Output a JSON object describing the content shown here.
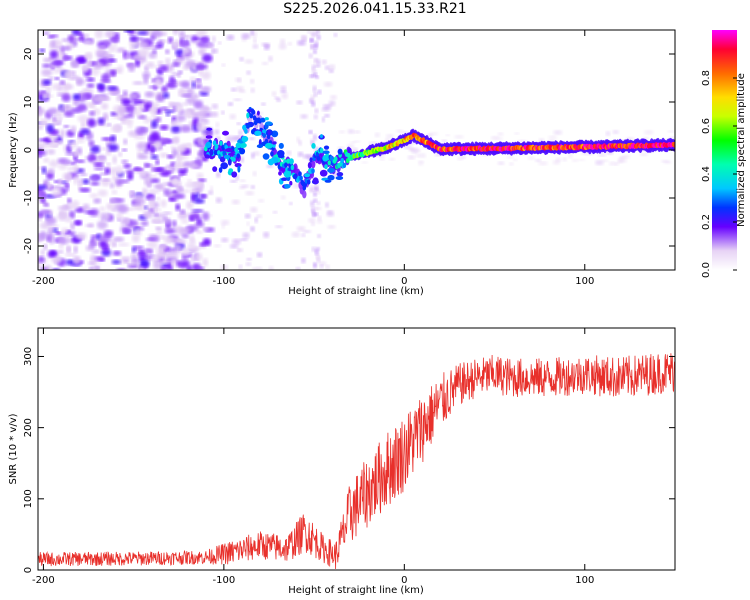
{
  "title": "S225.2026.041.15.33.R21",
  "chart_data": [
    {
      "type": "heatmap",
      "title": "S225.2026.041.15.33.R21",
      "xlabel": "Height of straight line (km)",
      "ylabel": "Frequency (Hz)",
      "xlim": [
        -203,
        150
      ],
      "ylim": [
        -25,
        25
      ],
      "xticks": [
        -200,
        -100,
        0,
        100
      ],
      "xtick_labels": [
        "-200",
        "-100",
        "0",
        "100"
      ],
      "yticks": [
        -20,
        -10,
        0,
        10,
        20
      ],
      "ytick_labels": [
        "-20",
        "-10",
        "0",
        "10",
        "20"
      ],
      "colorbar": {
        "label": "Normalized spectral amplitude",
        "range": [
          0,
          1
        ],
        "ticks": [
          0.0,
          0.2,
          0.4,
          0.6,
          0.8
        ],
        "tick_labels": [
          "0.0",
          "0.2",
          "0.4",
          "0.6",
          "0.8"
        ]
      },
      "features": {
        "noise_region_x": [
          -203,
          -108
        ],
        "signal_track": [
          {
            "x": -110,
            "y": 0.5,
            "amp": 0.35
          },
          {
            "x": -100,
            "y": 0.0,
            "amp": 0.3
          },
          {
            "x": -92,
            "y": -1.0,
            "amp": 0.3
          },
          {
            "x": -85,
            "y": 8.0,
            "amp": 0.15
          },
          {
            "x": -78,
            "y": 4.0,
            "amp": 0.2
          },
          {
            "x": -70,
            "y": -2.0,
            "amp": 0.3
          },
          {
            "x": -62,
            "y": -4.0,
            "amp": 0.3
          },
          {
            "x": -55,
            "y": -8.0,
            "amp": 0.25
          },
          {
            "x": -48,
            "y": -1.0,
            "amp": 0.3
          },
          {
            "x": -40,
            "y": -3.0,
            "amp": 0.35
          },
          {
            "x": -30,
            "y": -1.5,
            "amp": 0.45
          },
          {
            "x": -20,
            "y": -0.5,
            "amp": 0.6
          },
          {
            "x": -10,
            "y": 0.5,
            "amp": 0.7
          },
          {
            "x": 0,
            "y": 2.0,
            "amp": 0.75
          },
          {
            "x": 5,
            "y": 3.0,
            "amp": 0.8
          },
          {
            "x": 20,
            "y": 0.2,
            "amp": 0.85
          },
          {
            "x": 50,
            "y": 0.3,
            "amp": 0.9
          },
          {
            "x": 80,
            "y": 0.5,
            "amp": 0.85
          },
          {
            "x": 110,
            "y": 0.7,
            "amp": 0.9
          },
          {
            "x": 140,
            "y": 1.0,
            "amp": 0.95
          }
        ]
      }
    },
    {
      "type": "line",
      "xlabel": "Height of straight line (km)",
      "ylabel": "SNR (10 * v/v)",
      "xlim": [
        -203,
        150
      ],
      "ylim": [
        0,
        340
      ],
      "xticks": [
        -200,
        -100,
        0,
        100
      ],
      "xtick_labels": [
        "-200",
        "-100",
        "0",
        "100"
      ],
      "yticks": [
        0,
        100,
        200,
        300
      ],
      "ytick_labels": [
        "0",
        "100",
        "200",
        "300"
      ],
      "series": [
        {
          "name": "SNR",
          "color": "#e8302b",
          "trend_x": [
            -203,
            -150,
            -110,
            -95,
            -80,
            -65,
            -55,
            -45,
            -38,
            -30,
            -20,
            -10,
            0,
            10,
            20,
            30,
            40,
            50,
            60,
            80,
            100,
            120,
            150
          ],
          "trend_y": [
            15,
            16,
            18,
            25,
            35,
            30,
            55,
            30,
            20,
            80,
            110,
            140,
            165,
            200,
            235,
            260,
            270,
            275,
            270,
            270,
            275,
            270,
            280
          ],
          "noise_amplitude": [
            10,
            10,
            10,
            18,
            20,
            20,
            30,
            20,
            20,
            45,
            50,
            55,
            55,
            50,
            40,
            30,
            28,
            28,
            28,
            28,
            28,
            30,
            30
          ]
        }
      ]
    }
  ]
}
